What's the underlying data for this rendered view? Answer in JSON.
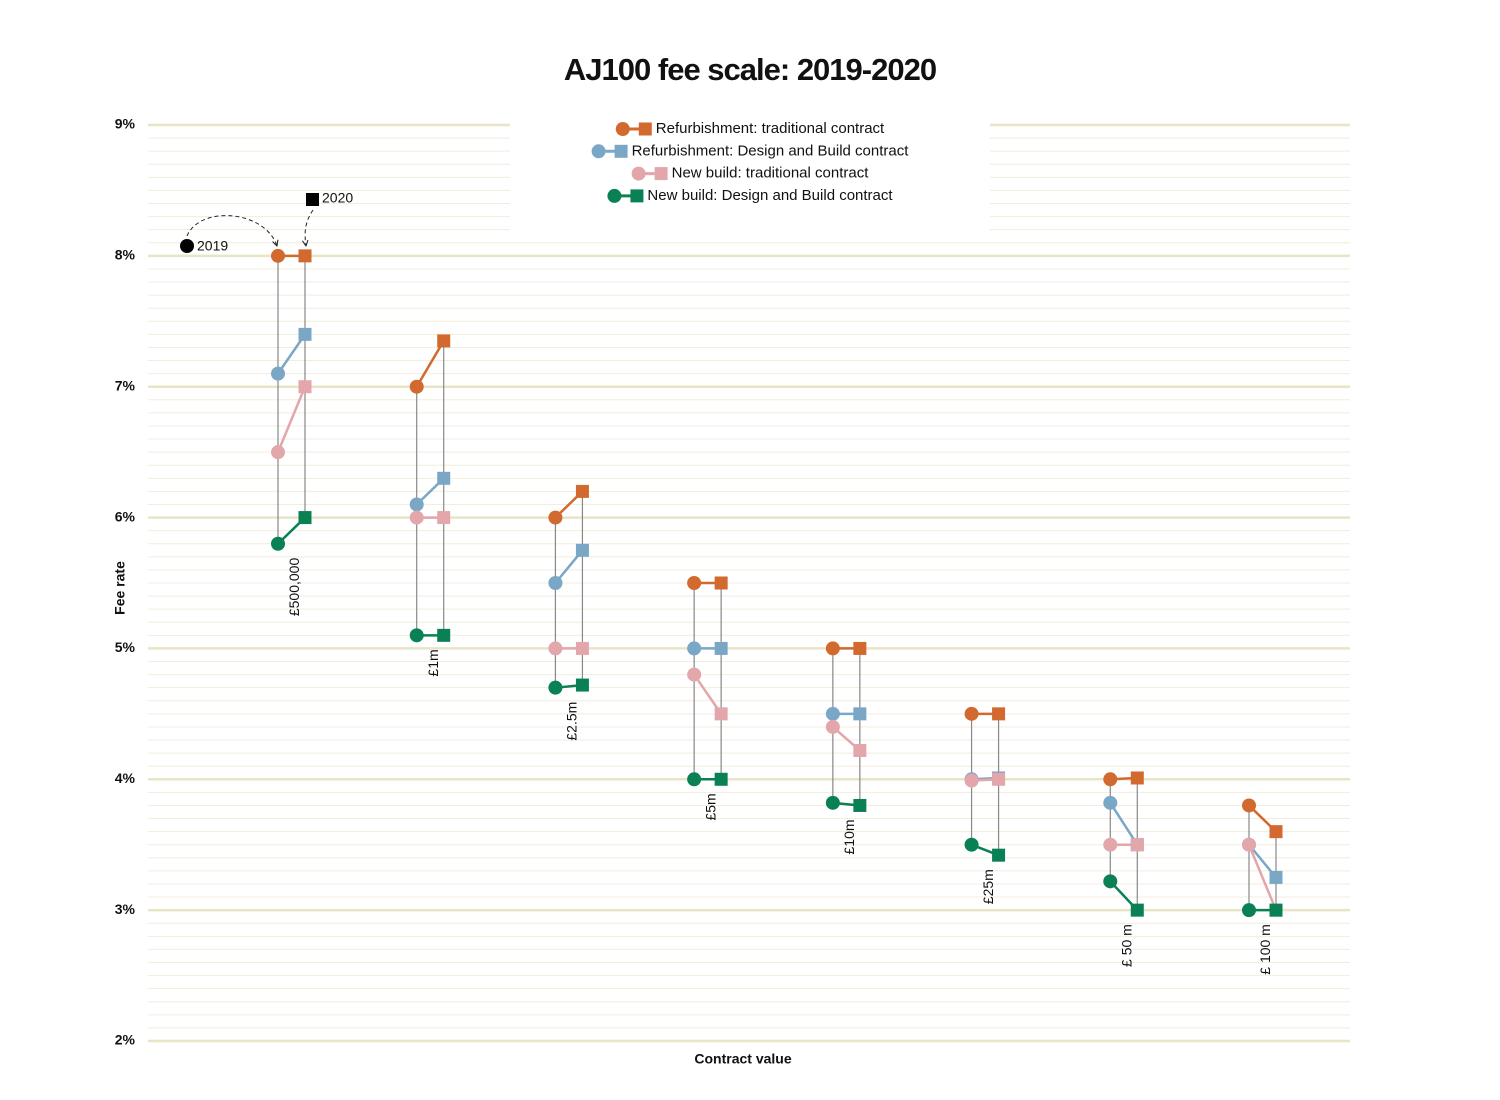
{
  "chart_data": {
    "type": "dumbbell",
    "title": "AJ100 fee scale: 2019-2020",
    "y_label": "Fee rate",
    "x_label": "Contract value",
    "period_labels": [
      "2019",
      "2020"
    ],
    "categories": [
      "£500,000",
      "£1m",
      "£2.5m",
      "£5m",
      "£10m",
      "£25m",
      "£ 50 m",
      "£ 100 m"
    ],
    "series": [
      {
        "name": "Refurbishment: traditional contract",
        "color": "#d2692e",
        "values": [
          [
            8,
            8
          ],
          [
            7,
            7.35
          ],
          [
            6,
            6.2
          ],
          [
            5.5,
            5.5
          ],
          [
            5,
            5
          ],
          [
            4.5,
            4.5
          ],
          [
            4,
            4.01
          ],
          [
            3.8,
            3.6
          ]
        ]
      },
      {
        "name": "Refurbishment: Design and Build contract",
        "color": "#7ba7c7",
        "values": [
          [
            7.1,
            7.4
          ],
          [
            6.1,
            6.3
          ],
          [
            5.5,
            5.75
          ],
          [
            5,
            5
          ],
          [
            4.5,
            4.5
          ],
          [
            4,
            4.01
          ],
          [
            3.82,
            3.5
          ],
          [
            3.5,
            3.25
          ]
        ]
      },
      {
        "name": "New build: traditional contract",
        "color": "#e3a6ab",
        "values": [
          [
            6.5,
            7
          ],
          [
            6,
            6
          ],
          [
            5,
            5
          ],
          [
            4.8,
            4.5
          ],
          [
            4.4,
            4.22
          ],
          [
            3.99,
            4
          ],
          [
            3.5,
            3.5
          ],
          [
            3.5,
            3
          ]
        ]
      },
      {
        "name": "New build: Design and Build contract",
        "color": "#0a8055",
        "values": [
          [
            5.8,
            6
          ],
          [
            5.1,
            5.1
          ],
          [
            4.7,
            4.72
          ],
          [
            4,
            4
          ],
          [
            3.82,
            3.8
          ],
          [
            3.5,
            3.42
          ],
          [
            3.22,
            3
          ],
          [
            3,
            3
          ]
        ]
      }
    ],
    "ylim": [
      2,
      9
    ],
    "yticks": [
      {
        "value": 2,
        "label": "2%"
      },
      {
        "value": 3,
        "label": "3%"
      },
      {
        "value": 4,
        "label": "4%"
      },
      {
        "value": 5,
        "label": "5%"
      },
      {
        "value": 6,
        "label": "6%"
      },
      {
        "value": 7,
        "label": "7%"
      },
      {
        "value": 8,
        "label": "8%"
      },
      {
        "value": 9,
        "label": "9%"
      }
    ],
    "minor_yticks": [
      2.1,
      2.2,
      2.3,
      2.4,
      2.5,
      2.6,
      2.7,
      2.8,
      2.9,
      3.1,
      3.2,
      3.3,
      3.4,
      3.5,
      3.6,
      3.7,
      3.8,
      3.9,
      4.1,
      4.2,
      4.3,
      4.4,
      4.5,
      4.6,
      4.7,
      4.8,
      4.9,
      5.1,
      5.2,
      5.3,
      5.4,
      5.5,
      5.6,
      5.7,
      5.8,
      5.9,
      6.1,
      6.2,
      6.3,
      6.4,
      6.5,
      6.6,
      6.7,
      6.8,
      6.9,
      7.1,
      7.2,
      7.3,
      7.4,
      7.5,
      7.6,
      7.7,
      7.8,
      7.9,
      8.1,
      8.2,
      8.3,
      8.4,
      8.5,
      8.6,
      8.7,
      8.8,
      8.9
    ],
    "grid": true
  }
}
